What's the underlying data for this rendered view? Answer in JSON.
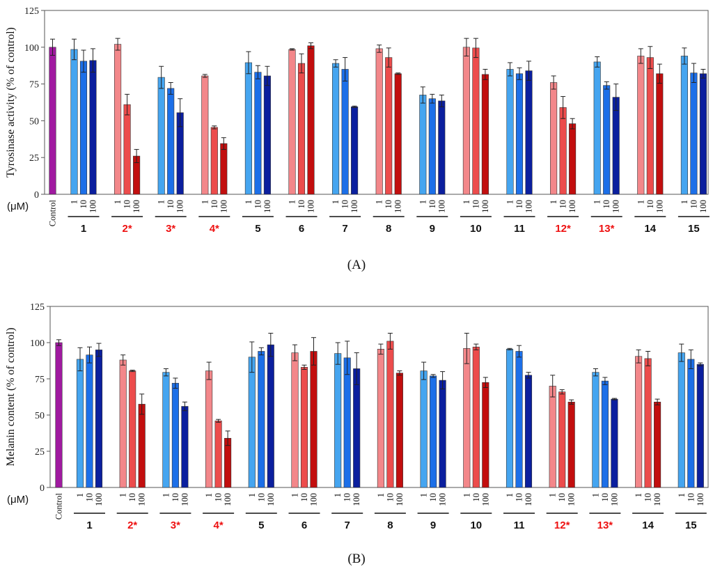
{
  "colors": {
    "control": "#a01aa0",
    "blue": [
      "#45a5f0",
      "#1c6fe8",
      "#0b1f9e"
    ],
    "red": [
      "#f3878a",
      "#ec4c4c",
      "#c20e0e"
    ],
    "active_label": "#ee1111",
    "inactive_label": "#111111"
  },
  "chart_data": [
    {
      "type": "bar",
      "panel_label": "(A)",
      "ylabel": "Tyrosinase activity (% of control)",
      "ylim": [
        0,
        125
      ],
      "yticks": [
        "0",
        "25",
        "50",
        "75",
        "100",
        "125"
      ],
      "concentration_unit": "(μM)",
      "concentrations": [
        "1",
        "10",
        "100"
      ],
      "control": {
        "label": "Control",
        "value": 100,
        "error": 5.5
      },
      "compounds": [
        {
          "label": "1",
          "palette": "blue",
          "active": false,
          "values": [
            98.5,
            90.5,
            91
          ],
          "errors": [
            7,
            7.5,
            8
          ]
        },
        {
          "label": "2*",
          "palette": "red",
          "active": true,
          "values": [
            102,
            61,
            26
          ],
          "errors": [
            4,
            7,
            4.5
          ]
        },
        {
          "label": "3*",
          "palette": "blue",
          "active": true,
          "values": [
            79.5,
            72,
            55.5
          ],
          "errors": [
            7.5,
            4,
            9.5
          ]
        },
        {
          "label": "4*",
          "palette": "red",
          "active": true,
          "values": [
            80.5,
            45.5,
            34.5
          ],
          "errors": [
            1,
            1,
            4
          ]
        },
        {
          "label": "5",
          "palette": "blue",
          "active": false,
          "values": [
            89.5,
            83,
            80.5
          ],
          "errors": [
            7.5,
            4.5,
            6.5
          ]
        },
        {
          "label": "6",
          "palette": "red",
          "active": false,
          "values": [
            98.5,
            89,
            101
          ],
          "errors": [
            0.5,
            6.5,
            2
          ]
        },
        {
          "label": "7",
          "palette": "blue",
          "active": false,
          "values": [
            89,
            85,
            59.5
          ],
          "errors": [
            2.5,
            8,
            0.5
          ]
        },
        {
          "label": "8",
          "palette": "red",
          "active": false,
          "values": [
            99,
            93,
            82
          ],
          "errors": [
            2.5,
            6.5,
            0.5
          ]
        },
        {
          "label": "9",
          "palette": "blue",
          "active": false,
          "values": [
            67.5,
            65,
            63.5
          ],
          "errors": [
            5.5,
            3,
            4
          ]
        },
        {
          "label": "10",
          "palette": "red",
          "active": false,
          "values": [
            100,
            99.5,
            81.5
          ],
          "errors": [
            6,
            6.5,
            3.5
          ]
        },
        {
          "label": "11",
          "palette": "blue",
          "active": false,
          "values": [
            85,
            82,
            84
          ],
          "errors": [
            4.5,
            4,
            6.5
          ]
        },
        {
          "label": "12*",
          "palette": "red",
          "active": true,
          "values": [
            76,
            59,
            48
          ],
          "errors": [
            4.5,
            7.5,
            3.5
          ]
        },
        {
          "label": "13*",
          "palette": "blue",
          "active": true,
          "values": [
            90,
            74,
            66
          ],
          "errors": [
            3.5,
            2.5,
            9
          ]
        },
        {
          "label": "14",
          "palette": "red",
          "active": false,
          "values": [
            94,
            93,
            82
          ],
          "errors": [
            5,
            7.5,
            6.5
          ]
        },
        {
          "label": "15",
          "palette": "blue",
          "active": false,
          "values": [
            94,
            82.5,
            82
          ],
          "errors": [
            5.5,
            6.5,
            3
          ]
        }
      ]
    },
    {
      "type": "bar",
      "panel_label": "(B)",
      "ylabel": "Melanin content (% of control)",
      "ylim": [
        0,
        125
      ],
      "yticks": [
        "0",
        "25",
        "50",
        "75",
        "100",
        "125"
      ],
      "concentration_unit": "(μM)",
      "concentrations": [
        "1",
        "10",
        "100"
      ],
      "control": {
        "label": "Control",
        "value": 100,
        "error": 2
      },
      "compounds": [
        {
          "label": "1",
          "palette": "blue",
          "active": false,
          "values": [
            88.5,
            91.5,
            95
          ],
          "errors": [
            8,
            5.5,
            4.5
          ]
        },
        {
          "label": "2*",
          "palette": "red",
          "active": true,
          "values": [
            88,
            80.5,
            57.5
          ],
          "errors": [
            3.5,
            0.5,
            7
          ]
        },
        {
          "label": "3*",
          "palette": "blue",
          "active": true,
          "values": [
            79.5,
            72,
            56
          ],
          "errors": [
            2.5,
            3.5,
            3
          ]
        },
        {
          "label": "4*",
          "palette": "red",
          "active": true,
          "values": [
            80.5,
            46,
            34
          ],
          "errors": [
            6,
            1,
            5
          ]
        },
        {
          "label": "5",
          "palette": "blue",
          "active": false,
          "values": [
            90,
            94,
            98.5
          ],
          "errors": [
            10.5,
            2.5,
            8
          ]
        },
        {
          "label": "6",
          "palette": "red",
          "active": false,
          "values": [
            93,
            83,
            94
          ],
          "errors": [
            5.5,
            1.5,
            9.5
          ]
        },
        {
          "label": "7",
          "palette": "blue",
          "active": false,
          "values": [
            92.5,
            89.5,
            82
          ],
          "errors": [
            7.5,
            11.5,
            11
          ]
        },
        {
          "label": "8",
          "palette": "red",
          "active": false,
          "values": [
            95.5,
            101,
            79
          ],
          "errors": [
            3.5,
            5.5,
            1.5
          ]
        },
        {
          "label": "9",
          "palette": "blue",
          "active": false,
          "values": [
            80.5,
            77,
            74
          ],
          "errors": [
            6,
            1,
            6
          ]
        },
        {
          "label": "10",
          "palette": "red",
          "active": false,
          "values": [
            96,
            97,
            72.5
          ],
          "errors": [
            10.5,
            2,
            3.5
          ]
        },
        {
          "label": "11",
          "palette": "blue",
          "active": false,
          "values": [
            95.5,
            94,
            77.5
          ],
          "errors": [
            0.5,
            4,
            2
          ]
        },
        {
          "label": "12*",
          "palette": "red",
          "active": true,
          "values": [
            70,
            66,
            59
          ],
          "errors": [
            7.5,
            1.5,
            1.5
          ]
        },
        {
          "label": "13*",
          "palette": "blue",
          "active": true,
          "values": [
            79.5,
            73.5,
            61
          ],
          "errors": [
            2.5,
            2.5,
            0.5
          ]
        },
        {
          "label": "14",
          "palette": "red",
          "active": false,
          "values": [
            90.5,
            89,
            59
          ],
          "errors": [
            4.5,
            5,
            2
          ]
        },
        {
          "label": "15",
          "palette": "blue",
          "active": false,
          "values": [
            93,
            88.5,
            85
          ],
          "errors": [
            6,
            6.5,
            1
          ]
        }
      ]
    }
  ]
}
